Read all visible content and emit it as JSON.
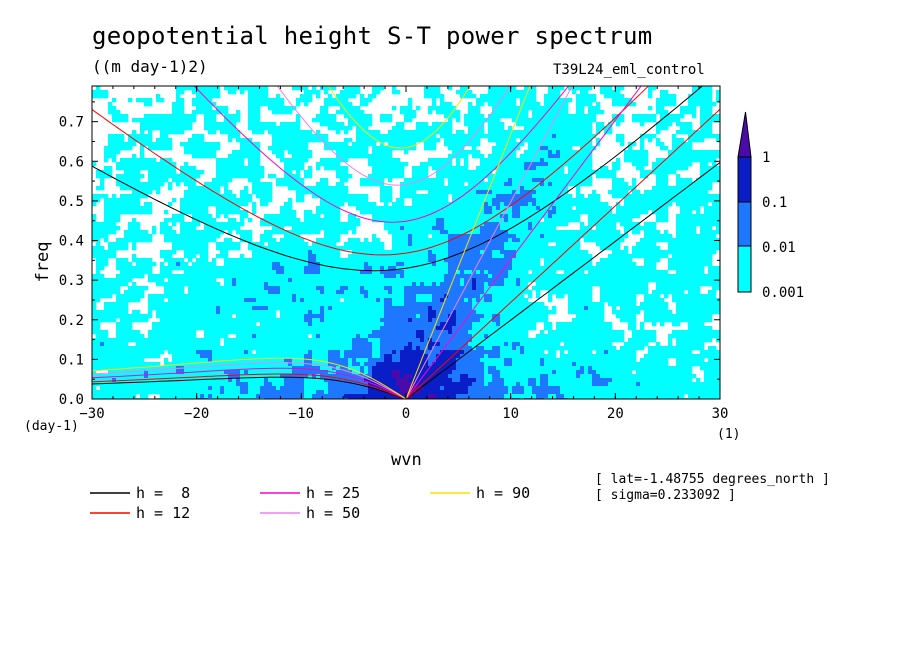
{
  "header": {
    "title": "geopotential height S-T power spectrum",
    "subtitle": "((m day-1)2)",
    "run": "T39L24_eml_control"
  },
  "colors": {
    "level1": "#00ffff",
    "level2": "#1e78ff",
    "level3": "#0a1ec8",
    "level4": "#4b0aaa"
  },
  "chart_data": {
    "type": "heatmap",
    "title": "geopotential height S-T power spectrum",
    "subtitle": "((m day-1)2)",
    "xlabel": "wvn",
    "ylabel": "freq",
    "x_unit": "(1)",
    "y_unit": "(day-1)",
    "xlim": [
      -30,
      30
    ],
    "ylim": [
      0,
      0.79
    ],
    "x_ticks": [
      -30,
      -20,
      -10,
      0,
      10,
      20,
      30
    ],
    "y_ticks": [
      0.0,
      0.1,
      0.2,
      0.3,
      0.4,
      0.5,
      0.6,
      0.7
    ],
    "colorbar": {
      "levels": [
        "0.001",
        "0.01",
        "0.1",
        "1"
      ],
      "colors": [
        "#00ffff",
        "#1e78ff",
        "#0a1ec8",
        "#4b0aaa"
      ]
    },
    "dispersion_curves": [
      {
        "name": "h =  8",
        "h": 8,
        "color": "#000000"
      },
      {
        "name": "h = 12",
        "h": 12,
        "color": "#ff0000"
      },
      {
        "name": "h = 25",
        "h": 25,
        "color": "#ff00cc"
      },
      {
        "name": "h = 50",
        "h": 50,
        "color": "#ee82ee"
      },
      {
        "name": "h = 90",
        "h": 90,
        "color": "#ffdd00"
      }
    ],
    "annotations": [
      "[ lat=-1.48755 degrees_north ]",
      "[ sigma=0.233092 ]"
    ]
  },
  "legend": [
    {
      "label": "h =  8",
      "color": "#000000"
    },
    {
      "label": "h = 25",
      "color": "#ff00cc"
    },
    {
      "label": "h = 90",
      "color": "#ffdd00"
    },
    {
      "label": "h = 12",
      "color": "#ff0000"
    },
    {
      "label": "h = 50",
      "color": "#ee82ee"
    }
  ],
  "info": {
    "lat": "[ lat=-1.48755 degrees_north ]",
    "sigma": "[ sigma=0.233092 ]"
  }
}
